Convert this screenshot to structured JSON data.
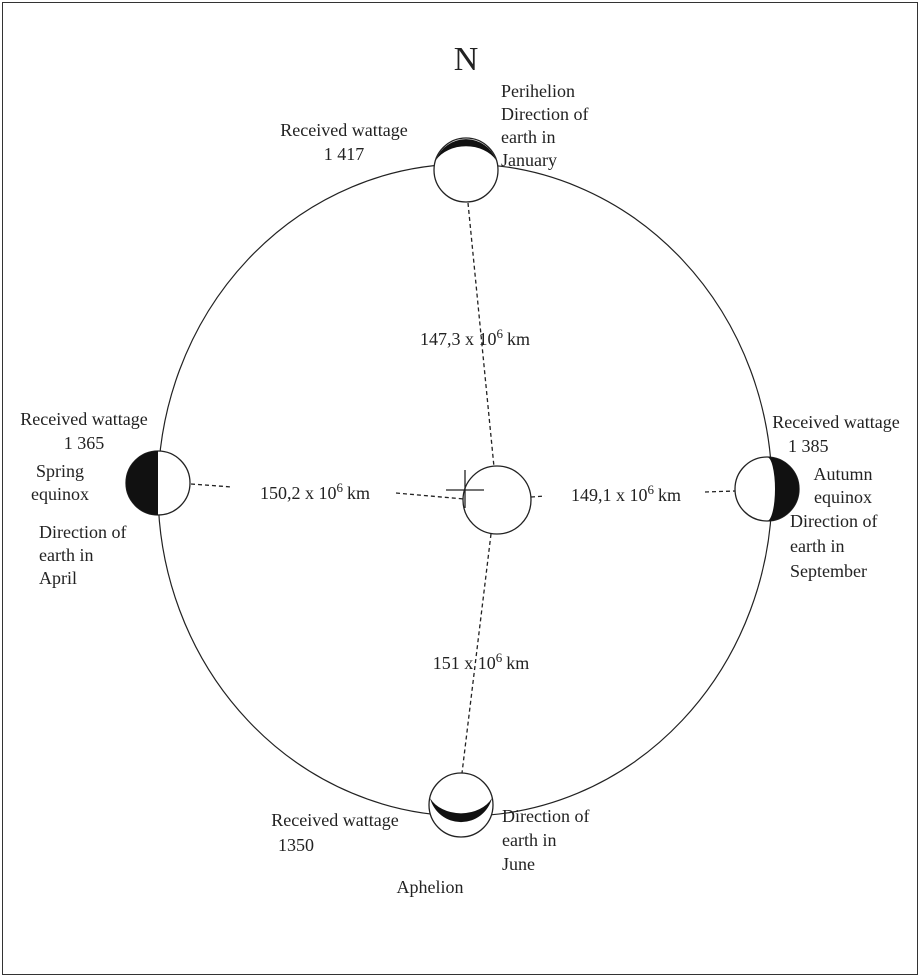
{
  "north": "N",
  "perihelion": {
    "wattage_label": "Received wattage",
    "wattage": "1 417",
    "lines": [
      "Perihelion",
      "Direction of",
      "earth in",
      "January"
    ]
  },
  "spring": {
    "wattage_label": "Received wattage",
    "wattage": "1 365",
    "lines": [
      "Spring",
      "equinox"
    ],
    "direction": [
      "Direction of",
      "earth in",
      "April"
    ]
  },
  "autumn": {
    "wattage_label": "Received wattage",
    "wattage": "1 385",
    "lines": [
      "Autumn",
      "equinox",
      "Direction of",
      "earth in",
      "September"
    ]
  },
  "aphelion": {
    "wattage_label": "Received wattage",
    "wattage": "1350",
    "direction": [
      "Direction of",
      "earth in",
      "June"
    ],
    "name": "Aphelion"
  },
  "distances": [
    {
      "text": "147,3 x 10",
      "exp": "6",
      "unit": "km"
    },
    {
      "text": "150,2 x 10",
      "exp": "6",
      "unit": "km"
    },
    {
      "text": "149,1 x 10",
      "exp": "6",
      "unit": "km"
    },
    {
      "text": "151 x 10",
      "exp": "6",
      "unit": "km"
    }
  ]
}
